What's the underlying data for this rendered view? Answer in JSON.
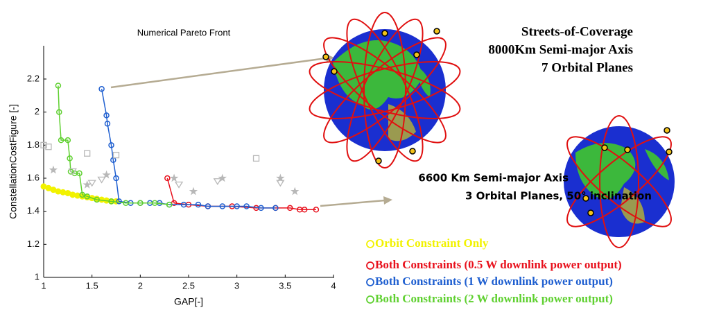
{
  "chart_data": {
    "type": "scatter",
    "title": "Numerical Pareto Front",
    "x_label": "GAP[-]",
    "y_label": "ConstellationCostFigure [-]",
    "xlim": [
      1,
      4
    ],
    "xticks": [
      1,
      1.5,
      2,
      2.5,
      3,
      3.5,
      4
    ],
    "ylim": [
      1,
      2.4
    ],
    "yticks": [
      1,
      1.2,
      1.4,
      1.6,
      1.8,
      2,
      2.2
    ],
    "series": [
      {
        "name": "Orbit Constraint Only",
        "color": "#f2f200",
        "marker": "filled-circle",
        "line": false,
        "x": [
          1,
          1.05,
          1.1,
          1.15,
          1.2,
          1.25,
          1.3,
          1.35,
          1.4,
          1.45,
          1.5,
          1.55,
          1.6,
          1.65,
          1.7,
          1.75
        ],
        "values": [
          1.55,
          1.54,
          1.53,
          1.52,
          1.515,
          1.51,
          1.5,
          1.495,
          1.49,
          1.485,
          1.48,
          1.475,
          1.47,
          1.465,
          1.46,
          1.46
        ]
      },
      {
        "name": "Both Constraints (0.5 W downlink power output)",
        "color": "#e8101c",
        "marker": "circle",
        "line": true,
        "x": [
          2.28,
          2.35,
          2.5,
          2.7,
          2.95,
          3.2,
          3.4,
          3.55,
          3.65,
          3.7,
          3.82
        ],
        "values": [
          1.6,
          1.45,
          1.44,
          1.43,
          1.43,
          1.42,
          1.42,
          1.42,
          1.41,
          1.41,
          1.41
        ]
      },
      {
        "name": "Both Constraints (1 W downlink power output)",
        "color": "#1f5fd0",
        "marker": "circle",
        "line": true,
        "x": [
          1.6,
          1.65,
          1.66,
          1.7,
          1.72,
          1.75,
          1.78,
          1.9,
          2.0,
          2.1,
          2.2,
          2.3,
          2.45,
          2.6,
          2.7,
          2.85,
          3.0,
          3.1,
          3.25,
          3.4
        ],
        "values": [
          2.14,
          1.98,
          1.93,
          1.8,
          1.71,
          1.6,
          1.46,
          1.45,
          1.45,
          1.45,
          1.45,
          1.44,
          1.44,
          1.44,
          1.43,
          1.43,
          1.43,
          1.43,
          1.42,
          1.42
        ]
      },
      {
        "name": "Both Constraints (2 W downlink power output)",
        "color": "#5fd030",
        "marker": "circle",
        "line": true,
        "x": [
          1.15,
          1.16,
          1.18,
          1.25,
          1.27,
          1.28,
          1.32,
          1.37,
          1.4,
          1.45,
          1.55,
          1.7,
          1.85,
          2.0,
          2.15,
          2.3
        ],
        "values": [
          2.16,
          2.0,
          1.83,
          1.83,
          1.72,
          1.64,
          1.63,
          1.63,
          1.5,
          1.49,
          1.47,
          1.46,
          1.45,
          1.45,
          1.45,
          1.44
        ]
      },
      {
        "color": "#b8b8b8",
        "marker": "square",
        "line": false,
        "x": [
          1,
          1.05,
          1.45,
          1.75,
          3.2
        ],
        "values": [
          1.8,
          1.79,
          1.75,
          1.74,
          1.72
        ]
      },
      {
        "color": "#b8b8b8",
        "marker": "triangle",
        "line": false,
        "x": [
          1.3,
          1.5,
          1.6,
          2.4,
          2.8,
          3.45
        ],
        "values": [
          1.64,
          1.57,
          1.59,
          1.56,
          1.58,
          1.57
        ]
      },
      {
        "color": "#b8b8b8",
        "marker": "star",
        "line": false,
        "x": [
          1.1,
          1.45,
          1.65,
          2.35,
          2.55,
          2.85,
          3.45,
          3.6
        ],
        "values": [
          1.65,
          1.56,
          1.62,
          1.6,
          1.52,
          1.6,
          1.6,
          1.52
        ]
      }
    ],
    "annotations": [
      "Streets-of-Coverage",
      "8000Km Semi-major Axis",
      "7 Orbital Planes",
      "6600 Km Semi-major Axis",
      "3 Orbital Planes, 50° inclination"
    ]
  }
}
